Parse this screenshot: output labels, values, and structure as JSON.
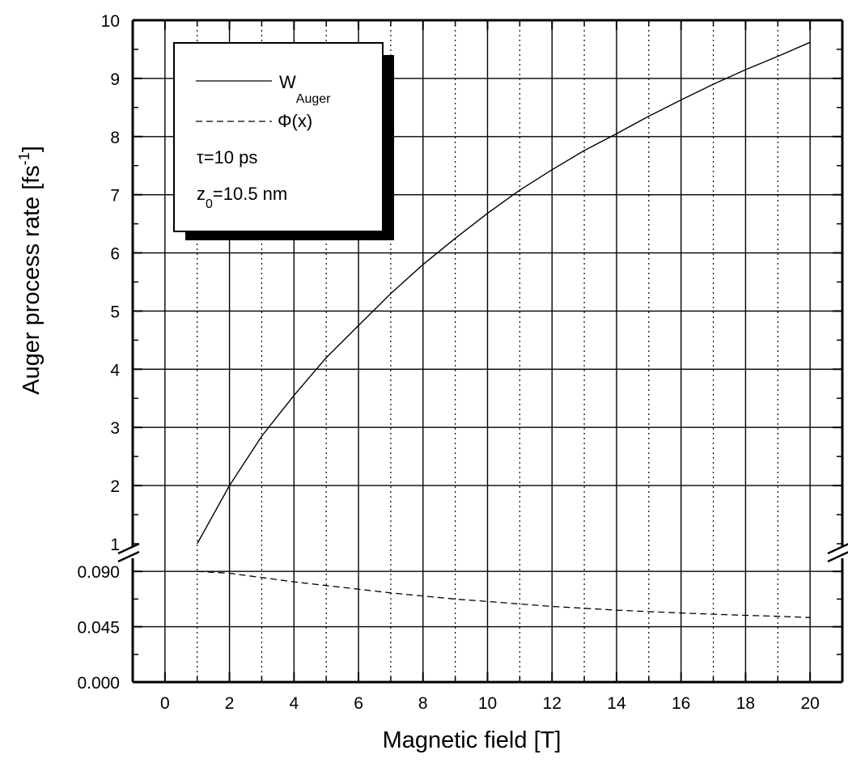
{
  "chart_data": {
    "type": "line",
    "title": "",
    "xlabel": "Magnetic field [T]",
    "ylabel_main": "Auger process rate [fs",
    "ylabel_sup": "-1",
    "ylabel_close": "]",
    "xlim": [
      -1,
      21
    ],
    "x_ticks": [
      0,
      2,
      4,
      6,
      8,
      10,
      12,
      14,
      16,
      18,
      20
    ],
    "x_tick_labels": [
      "0",
      "2",
      "4",
      "6",
      "8",
      "10",
      "12",
      "14",
      "16",
      "18",
      "20"
    ],
    "x_minor_gridlines": [
      1,
      3,
      5,
      7,
      9,
      11,
      13,
      15,
      17,
      19
    ],
    "axis_break": true,
    "y_lower": {
      "ylim": [
        0.0,
        0.1125
      ],
      "ticks": [
        0.0,
        0.045,
        0.09
      ],
      "tick_labels": [
        "0.000",
        "0.045",
        "0.090"
      ]
    },
    "y_upper": {
      "ylim": [
        1,
        10
      ],
      "ticks": [
        1,
        2,
        3,
        4,
        5,
        6,
        7,
        8,
        9,
        10
      ],
      "tick_labels": [
        "1",
        "2",
        "3",
        "4",
        "5",
        "6",
        "7",
        "8",
        "9",
        "10"
      ]
    },
    "grid": true,
    "legend_position": "top-left",
    "series": [
      {
        "name": "W",
        "name_sub": "Auger",
        "style": "solid",
        "x": [
          1,
          2,
          3,
          4,
          5,
          6,
          7,
          8,
          9,
          10,
          11,
          12,
          13,
          14,
          15,
          16,
          17,
          18,
          19,
          20
        ],
        "y": [
          1.0,
          2.0,
          2.85,
          3.55,
          4.2,
          4.75,
          5.3,
          5.8,
          6.25,
          6.68,
          7.08,
          7.43,
          7.76,
          8.05,
          8.35,
          8.63,
          8.9,
          9.15,
          9.38,
          9.62
        ]
      },
      {
        "name": "Φ(x)",
        "style": "dashed",
        "x": [
          1,
          2,
          3,
          4,
          5,
          6,
          7,
          8,
          9,
          10,
          11,
          12,
          13,
          14,
          15,
          16,
          17,
          18,
          19,
          20
        ],
        "y": [
          0.09,
          0.0885,
          0.085,
          0.0815,
          0.0785,
          0.0755,
          0.0725,
          0.07,
          0.0675,
          0.0655,
          0.0635,
          0.0615,
          0.06,
          0.0585,
          0.0573,
          0.0562,
          0.0552,
          0.0543,
          0.0535,
          0.0525
        ]
      }
    ],
    "annotations": [
      {
        "base": "τ=10 ps",
        "sub": "",
        "rest": ""
      },
      {
        "base": "z",
        "sub": "0",
        "rest": "=10.5 nm"
      }
    ]
  }
}
